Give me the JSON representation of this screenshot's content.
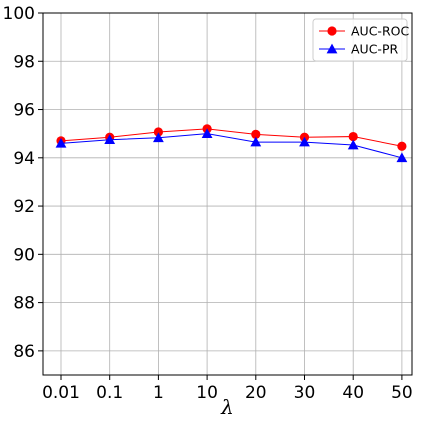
{
  "chart_data": {
    "type": "line",
    "title": "",
    "xlabel": "λ",
    "ylabel": "",
    "categories": [
      "0.01",
      "0.1",
      "1",
      "10",
      "20",
      "30",
      "40",
      "50"
    ],
    "ylim": [
      85,
      100
    ],
    "yticks": [
      86,
      88,
      90,
      92,
      94,
      96,
      98,
      100
    ],
    "grid": true,
    "legend_position": "top-right",
    "series": [
      {
        "name": "AUC-ROC",
        "color": "#ff0000",
        "marker": "circle",
        "values": [
          94.7,
          94.85,
          95.07,
          95.2,
          94.97,
          94.85,
          94.88,
          94.48
        ]
      },
      {
        "name": "AUC-PR",
        "color": "#0000ff",
        "marker": "triangle",
        "values": [
          94.6,
          94.75,
          94.83,
          95.0,
          94.65,
          94.65,
          94.53,
          94.0
        ]
      }
    ]
  }
}
